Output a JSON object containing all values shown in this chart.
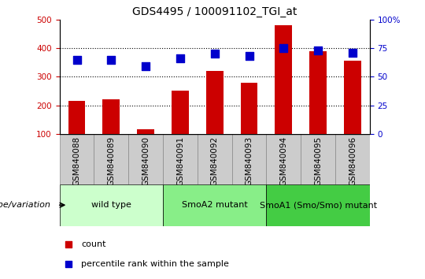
{
  "title": "GDS4495 / 100091102_TGI_at",
  "samples": [
    "GSM840088",
    "GSM840089",
    "GSM840090",
    "GSM840091",
    "GSM840092",
    "GSM840093",
    "GSM840094",
    "GSM840095",
    "GSM840096"
  ],
  "counts": [
    215,
    220,
    115,
    250,
    320,
    280,
    480,
    390,
    355
  ],
  "percentile_ranks": [
    65,
    65,
    59,
    66,
    70,
    68,
    75,
    73,
    71
  ],
  "groups": [
    {
      "label": "wild type",
      "color": "#ccffcc",
      "start": 0,
      "end": 2
    },
    {
      "label": "SmoA2 mutant",
      "color": "#88ee88",
      "start": 3,
      "end": 5
    },
    {
      "label": "SmoA1 (Smo/Smo) mutant",
      "color": "#44cc44",
      "start": 6,
      "end": 8
    }
  ],
  "bar_color": "#cc0000",
  "dot_color": "#0000cc",
  "left_ylim": [
    100,
    500
  ],
  "left_yticks": [
    100,
    200,
    300,
    400,
    500
  ],
  "right_ylim": [
    0,
    100
  ],
  "right_yticks": [
    0,
    25,
    50,
    75,
    100
  ],
  "right_yticklabels": [
    "0",
    "25",
    "50",
    "75",
    "100%"
  ],
  "grid_values": [
    200,
    300,
    400
  ],
  "bar_width": 0.5,
  "dot_size": 50,
  "genotype_label": "genotype/variation",
  "legend_count_label": "count",
  "legend_percentile_label": "percentile rank within the sample",
  "tick_fontsize": 7.5,
  "title_fontsize": 10,
  "label_fontsize": 8,
  "group_label_fontsize": 8,
  "sample_box_color": "#cccccc",
  "sample_box_border": "#888888"
}
